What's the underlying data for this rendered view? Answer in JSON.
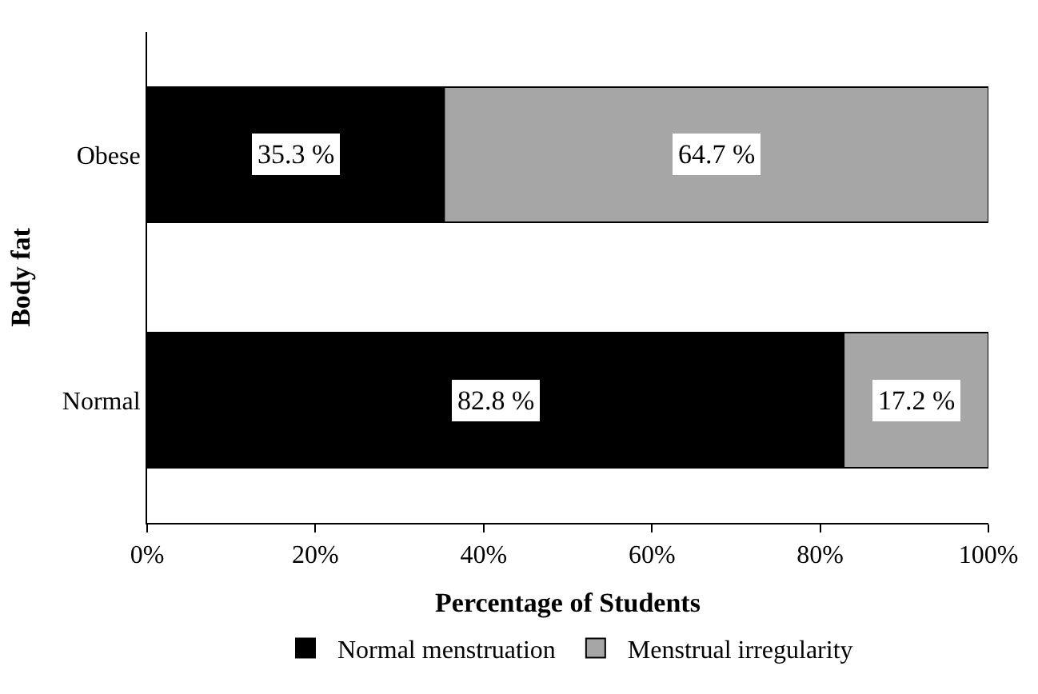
{
  "chart_data": {
    "type": "bar",
    "orientation": "horizontal",
    "stacked": true,
    "categories": [
      "Obese",
      "Normal"
    ],
    "series": [
      {
        "name": "Normal menstruation",
        "color": "#000000",
        "values": [
          35.3,
          82.8
        ],
        "value_labels": [
          "35.3 %",
          "82.8 %"
        ]
      },
      {
        "name": "Menstrual irregularity",
        "color": "#a6a6a6",
        "values": [
          64.7,
          17.2
        ],
        "value_labels": [
          "64.7 %",
          "17.2 %"
        ]
      }
    ],
    "xlabel": "Percentage of Students",
    "ylabel": "Body fat",
    "xlim": [
      0,
      100
    ],
    "xticks": [
      {
        "value": 0,
        "label": "0%"
      },
      {
        "value": 20,
        "label": "20%"
      },
      {
        "value": 40,
        "label": "40%"
      },
      {
        "value": 60,
        "label": "60%"
      },
      {
        "value": 80,
        "label": "80%"
      },
      {
        "value": 100,
        "label": "100%"
      }
    ],
    "legend": "bottom"
  }
}
